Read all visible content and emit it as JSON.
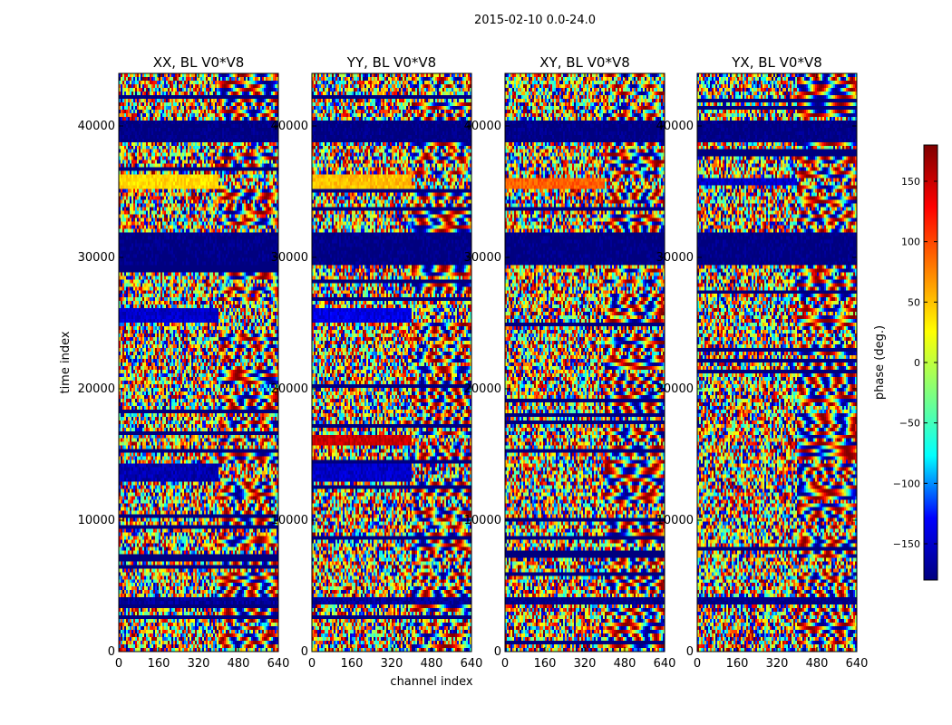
{
  "chart_data": {
    "type": "heatmap",
    "suptitle": "2015-02-10 0.0-24.0",
    "xlabel": "channel index",
    "ylabel": "time index",
    "xlim": [
      0,
      640
    ],
    "ylim": [
      0,
      44000
    ],
    "x_ticks": [
      "0",
      "160",
      "320",
      "480",
      "640"
    ],
    "y_ticks": [
      "0",
      "10000",
      "20000",
      "30000",
      "40000"
    ],
    "y_tick_values": [
      0,
      10000,
      20000,
      30000,
      40000
    ],
    "x_tick_values": [
      0,
      160,
      320,
      480,
      640
    ],
    "colorbar": {
      "label": "phase (deg.)",
      "range": [
        -180,
        180
      ],
      "tick_values": [
        150,
        100,
        50,
        0,
        -50,
        -100,
        -150
      ],
      "tick_labels": [
        "150",
        "100",
        "50",
        "0",
        "−50",
        "−100",
        "−150"
      ],
      "colormap": "jet",
      "stops": [
        "#00007f",
        "#0000ff",
        "#00ffff",
        "#7fff7f",
        "#ffff00",
        "#ff7f00",
        "#ff0000",
        "#7f0000"
      ]
    },
    "panels": [
      {
        "title": "XX, BL V0*V8",
        "bands": [
          {
            "y0": 38800,
            "y1": 40500,
            "phase": -180
          },
          {
            "y0": 29500,
            "y1": 31800,
            "phase": -180
          },
          {
            "y0": 35200,
            "y1": 36300,
            "phase": 40
          },
          {
            "y0": 25000,
            "y1": 26000,
            "phase": -150
          },
          {
            "y0": 13000,
            "y1": 14200,
            "phase": -160
          },
          {
            "y0": 3500,
            "y1": 4200,
            "phase": -170
          }
        ]
      },
      {
        "title": "YY, BL V0*V8",
        "bands": [
          {
            "y0": 38800,
            "y1": 40500,
            "phase": -180
          },
          {
            "y0": 29500,
            "y1": 31800,
            "phase": -180
          },
          {
            "y0": 35200,
            "y1": 36300,
            "phase": 50
          },
          {
            "y0": 25000,
            "y1": 26000,
            "phase": -140
          },
          {
            "y0": 15800,
            "y1": 16600,
            "phase": 150
          },
          {
            "y0": 12800,
            "y1": 14200,
            "phase": -150
          },
          {
            "y0": 3500,
            "y1": 4200,
            "phase": -170
          }
        ]
      },
      {
        "title": "XY, BL V0*V8",
        "bands": [
          {
            "y0": 38800,
            "y1": 40500,
            "phase": -180
          },
          {
            "y0": 29500,
            "y1": 31800,
            "phase": -180
          },
          {
            "y0": 35200,
            "y1": 36000,
            "phase": 90
          },
          {
            "y0": 3500,
            "y1": 4000,
            "phase": -180
          }
        ]
      },
      {
        "title": "YX, BL V0*V8",
        "bands": [
          {
            "y0": 38800,
            "y1": 40500,
            "phase": -180
          },
          {
            "y0": 29500,
            "y1": 31800,
            "phase": -180
          },
          {
            "y0": 35400,
            "y1": 36000,
            "phase": -150
          },
          {
            "y0": 3500,
            "y1": 4000,
            "phase": -180
          }
        ]
      }
    ]
  }
}
